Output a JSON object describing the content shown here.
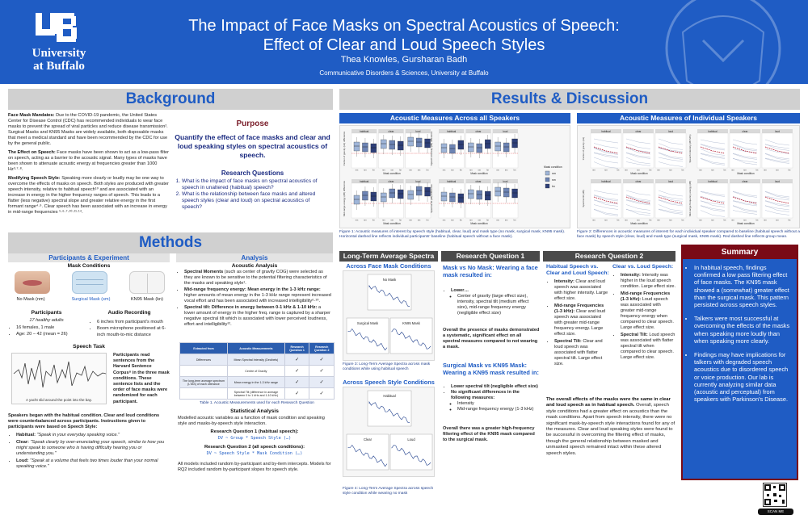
{
  "header": {
    "university_line1": "University",
    "university_line2": "at Buffalo",
    "title_line1": "The Impact of Face Masks on Spectral Acoustics of Speech:",
    "title_line2": "Effect of Clear and Loud Speech Styles",
    "authors": "Thea Knowles, Gursharan Badh",
    "affiliation": "Communicative Disorders & Sciences, University at Buffalo"
  },
  "colors": {
    "ub_blue": "#1f5cc4",
    "maroon": "#7a0a16"
  },
  "background": {
    "heading": "Background",
    "p1_bold": "Face Mask Mandates:",
    "p1": " Due to the COVID-19 pandemic, the United States Center for Disease Control (CDC) has recommended individuals to wear face masks to prevent the spread of viral particles and reduce disease transmission². Surgical Masks and KN95 Masks are widely available, both disposable masks that meet a medical standard and have been recommended by the CDC for use by the general public.",
    "p2_bold": "The Effect on Speech:",
    "p2": " Face masks have been shown to act as a low-pass filter on speech, acting as a barrier to the acoustic signal. Many types of masks have been shown to attenuate acoustic energy at frequencies greater than 1000 Hz³·⁷·⁸.",
    "p3_bold": "Modifying Speech Style:",
    "p3": " Speaking more clearly or loudly may be one way to overcome the effects of masks on speech. Both styles are produced with greater speech intensity, relative to habitual speech¹⁰ and are associated with an increase in energy in the higher frequency ranges of speech. This leads to a flatter (less negative) spectral slope and greater relative energy in the first formant range⁴·⁹. Clear speech has been associated with an increase in energy in mid-range frequencies ⁵·⁶·⁷·¹⁰·¹¹·¹⁴."
  },
  "purpose": {
    "heading": "Purpose",
    "text": "Quantify the effect of face masks and clear and loud speaking styles on spectral acoustics of speech.",
    "rq_heading": "Research Questions",
    "rq1": "What is the impact of face masks on spectral acoustics of speech in unaltered (habitual) speech?",
    "rq2": "What is the relationship between face masks and altered speech styles (clear and loud) on spectral acoustics of speech?"
  },
  "methods": {
    "heading": "Methods",
    "participants_heading": "Participants & Experiment",
    "mask_conditions": "Mask Conditions",
    "mask_nm": "No Mask (nm)",
    "mask_sm": "Surgical Mask (sm)",
    "mask_kn": "KN95 Mask (kn)",
    "participants": "Participants",
    "healthy": "17 healthy adults",
    "p_item1": "16 females, 1 male",
    "p_item2": "Age: 20 – 42 (mean = 26)",
    "audio": "Audio Recording",
    "a_item1": "6 inches from participant's mouth",
    "a_item2": "Boom microphone positioned at 6-inch mouth-to-mic distance",
    "speech_task": "Speech Task",
    "sentence": "A yacht slid around the point into the bay.",
    "task_text": "Participants read sentences from the Harvard Sentence Corpus⁸ in the three mask conditions. These sentence lists and the order of face masks were randomized for each participant.",
    "style_intro": "Speakers began with the habitual condition. Clear and loud conditions were counterbalanced across participants. Instructions given to participants were based on Speech Style:",
    "habitual_label": "Habitual:",
    "habitual": " \"Speak in your everyday speaking voice.\"",
    "clear_label": "Clear:",
    "clear": " \"Speak clearly by over-enunciating your speech, similar to how you might speak to someone who is having difficulty hearing you or understanding you.\"",
    "loud_label": "Loud:",
    "loud": " \"Speak at a volume that feels two times louder than your normal speaking voice.\""
  },
  "analysis": {
    "heading": "Analysis",
    "acoustic": "Acoustic Analysis",
    "b1_bold": "Spectral Moments",
    "b1": " (such as center of gravity COG) were selected as they are known to be sensitive to the potential filtering characteristics of the masks and speaking style¹.",
    "b2_bold": "Mid-range frequency energy: Mean energy in the 1-3 kHz range:",
    "b2": " higher amounts of mean energy in the 1-3 kHz range represent increased vocal effort and has been associated with increased intelligibility⁶·¹⁰.",
    "b3_bold": "Spectral tilt: Difference in energy between 0-1 kHz & 1-10 kHz:",
    "b3": " a lower amount of energy in the higher freq. range is captured by a sharper negative spectral tilt which is associated with lower perceived loudness, effort and intelligibility¹².",
    "table_h1": "Extracted from",
    "table_h2": "Acoustic Measurements",
    "table_h3": "Research Question 1",
    "table_h4": "Research Question 2",
    "row1_a": "Differences",
    "row1_b": "Mean Spectral Intensity (Decibels)",
    "row2_b": "Centre of Gravity",
    "row3_a": "The long-term average spectrum (LTAS) of each utterance",
    "row3_b": "Mean energy in the 1-3 kHz range",
    "row4_b": "Spectral Tilt (difference in average between 0 to 1 kHz and 1-10 kHz)",
    "check": "✓",
    "table_caption": "Table 1. Acoustic Measurements used for each Research Question",
    "stat_heading": "Statistical Analysis",
    "stat_text": "Modelled acoustic variables as a function of mask condition and speaking style and masks-by-speech style interaction.",
    "rq1_model_h": "Research Question 1 (habitual speech):",
    "rq1_model": "DV ~ Group * Speech Style (…)",
    "rq2_model_h": "Research Question 2 (all speech conditions):",
    "rq2_model": "DV ~ Speech Style * Mask Condition (…)",
    "model_note": "All models included random by-participant and by-item intercepts. Models for RQ2 included random by-participant slopes for speech style."
  },
  "results": {
    "heading": "Results & Discussion",
    "panel1_title": "Acoustic Measures Across all Speakers",
    "panel2_title": "Acoustic Measures of Individual Speakers",
    "style_labels": [
      "habitual",
      "clear",
      "loud"
    ],
    "mask_labels": [
      "nm",
      "sm",
      "kn"
    ],
    "x_axis": "Mask condition",
    "y1": "Center of gravity (Hz) difference",
    "y2": "Speech intensity (dB) difference",
    "y3": "Spectral tilt (dB) difference",
    "y4": "Mid-range energy (dB) difference",
    "y5": "Center of gravity (Hz)",
    "y6": "Speech intensity (dB SPL)",
    "y7": "Spectral tilt (dB)",
    "y8": "Mid-range frequency energy (dB)",
    "legend_title": "Mask condition",
    "fig1_caption": "Figure 1: Acoustic measures of interest by speech style (habitual, clear, loud) and mask type (no mask, surgical mask, KN95 mask). Horizontal dashed line reflects individual participants' baseline (habitual speech without a face mask).",
    "fig2_caption": "Figure 2: Differences in acoustic measures of interest for each individual speaker compared to baseline (habitual speech without a face mask) by speech style (clear, loud) and mask type (surgical mask, KN95 mask). Red dashed line reflects group mean.",
    "colors": {
      "nm": "#9fb5d8",
      "sm": "#6d84b4",
      "kn": "#2e3f78"
    }
  },
  "ltas": {
    "heading": "Long-Term Average Spectra",
    "across_masks": "Across Face Mask Conditions",
    "no_mask": "No Mask",
    "surgical": "Surgical Mask",
    "kn95": "KN95 Mask",
    "fig3_caption": "Figure 3: Long-Term Average Spectra across mask conditions while using habitual speech",
    "across_styles": "Across Speech Style Conditions",
    "habitual": "Habitual",
    "clear": "Clear",
    "loud": "Loud",
    "fig4_caption": "Figure 4: Long-Term Average Spectra across speech style condition while wearing no mask"
  },
  "rq1": {
    "heading": "Research Question 1",
    "h1": "Mask vs No Mask: Wearing a face mask resulted in:",
    "lower": "Lower…",
    "lower_item": "Center of gravity (large effect size), intensity, spectral tilt (medium effect size), mid-range frequency energy (negligible effect size)",
    "text1": "Overall the presence of masks demonstrated a systematic, significant effect on all spectral measures compared to not wearing a mask.",
    "h2": "Surgical Mask vs KN95 Mask: Wearing a KN95 mask resulted in:",
    "b1": "Lower spectral tilt (negligible effect size)",
    "b2": "No significant differences in the following measures:",
    "b2a": "Intensity",
    "b2b": "Mid-range frequency energy (1-3 kHz)",
    "text2": "Overall there was a greater high-frequency filtering effect of the KN95 mask compared to the surgical mask."
  },
  "rq2": {
    "heading": "Research Question 2",
    "h1": "Habitual Speech vs. Clear and Loud Speech:",
    "i1_bold": "Intensity:",
    "i1": " Clear and loud speech was associated with higher intensity. Large effect size.",
    "i2_bold": "Mid-range Frequencies (1-3 kHz):",
    "i2": " Clear and loud speech was associated with greater mid-range frequency energy. Large effect size.",
    "i3_bold": "Spectral Tilt:",
    "i3": " Clear and loud speech was associated with flatter spectral tilt. Large effect size.",
    "h2": "Clear vs. Loud Speech:",
    "j1_bold": "Intensity:",
    "j1": " Intensity was higher in the loud speech condition. Large effect size.",
    "j2_bold": "Mid-range Frequencies (1-3 kHz):",
    "j2": " Loud speech was associated with greater mid-range frequency energy when compared to clear speech. Large effect size.",
    "j3_bold": "Spectral Tilt:",
    "j3": " Loud speech was associated with flatter spectral tilt when compared to clear speech. Large effect size.",
    "overall_h": "The overall effects of the masks were the same in clear and loud speech as in habitual speech.",
    "overall": " Overall, speech style conditions had a greater effect on acoustics than the mask conditions. Apart from speech intensity, there were no significant mask-by-speech style interactions found for any of the measures. Clear and loud speaking styles were found to be successful in overcoming the filtering effect of masks, though the general relationship between masked and unmasked speech remained intact within these altered speech styles."
  },
  "summary": {
    "heading": "Summary",
    "s1": "In habitual speech, findings confirmed a low pass filtering effect of face masks. The KN95 mask showed a (somewhat) greater effect than the surgical mask. This pattern persisted across speech styles.",
    "s2": "Talkers were most successful at overcoming the effects of the masks when speaking more loudly than when speaking more clearly.",
    "s3": "Findings may have implications for talkers with degraded speech acoustics due to disordered speech or voice production. Our lab is currently analyzing similar data (acoustic and perceptual) from speakers with Parkinson's Disease."
  },
  "scan_me": "SCAN ME"
}
